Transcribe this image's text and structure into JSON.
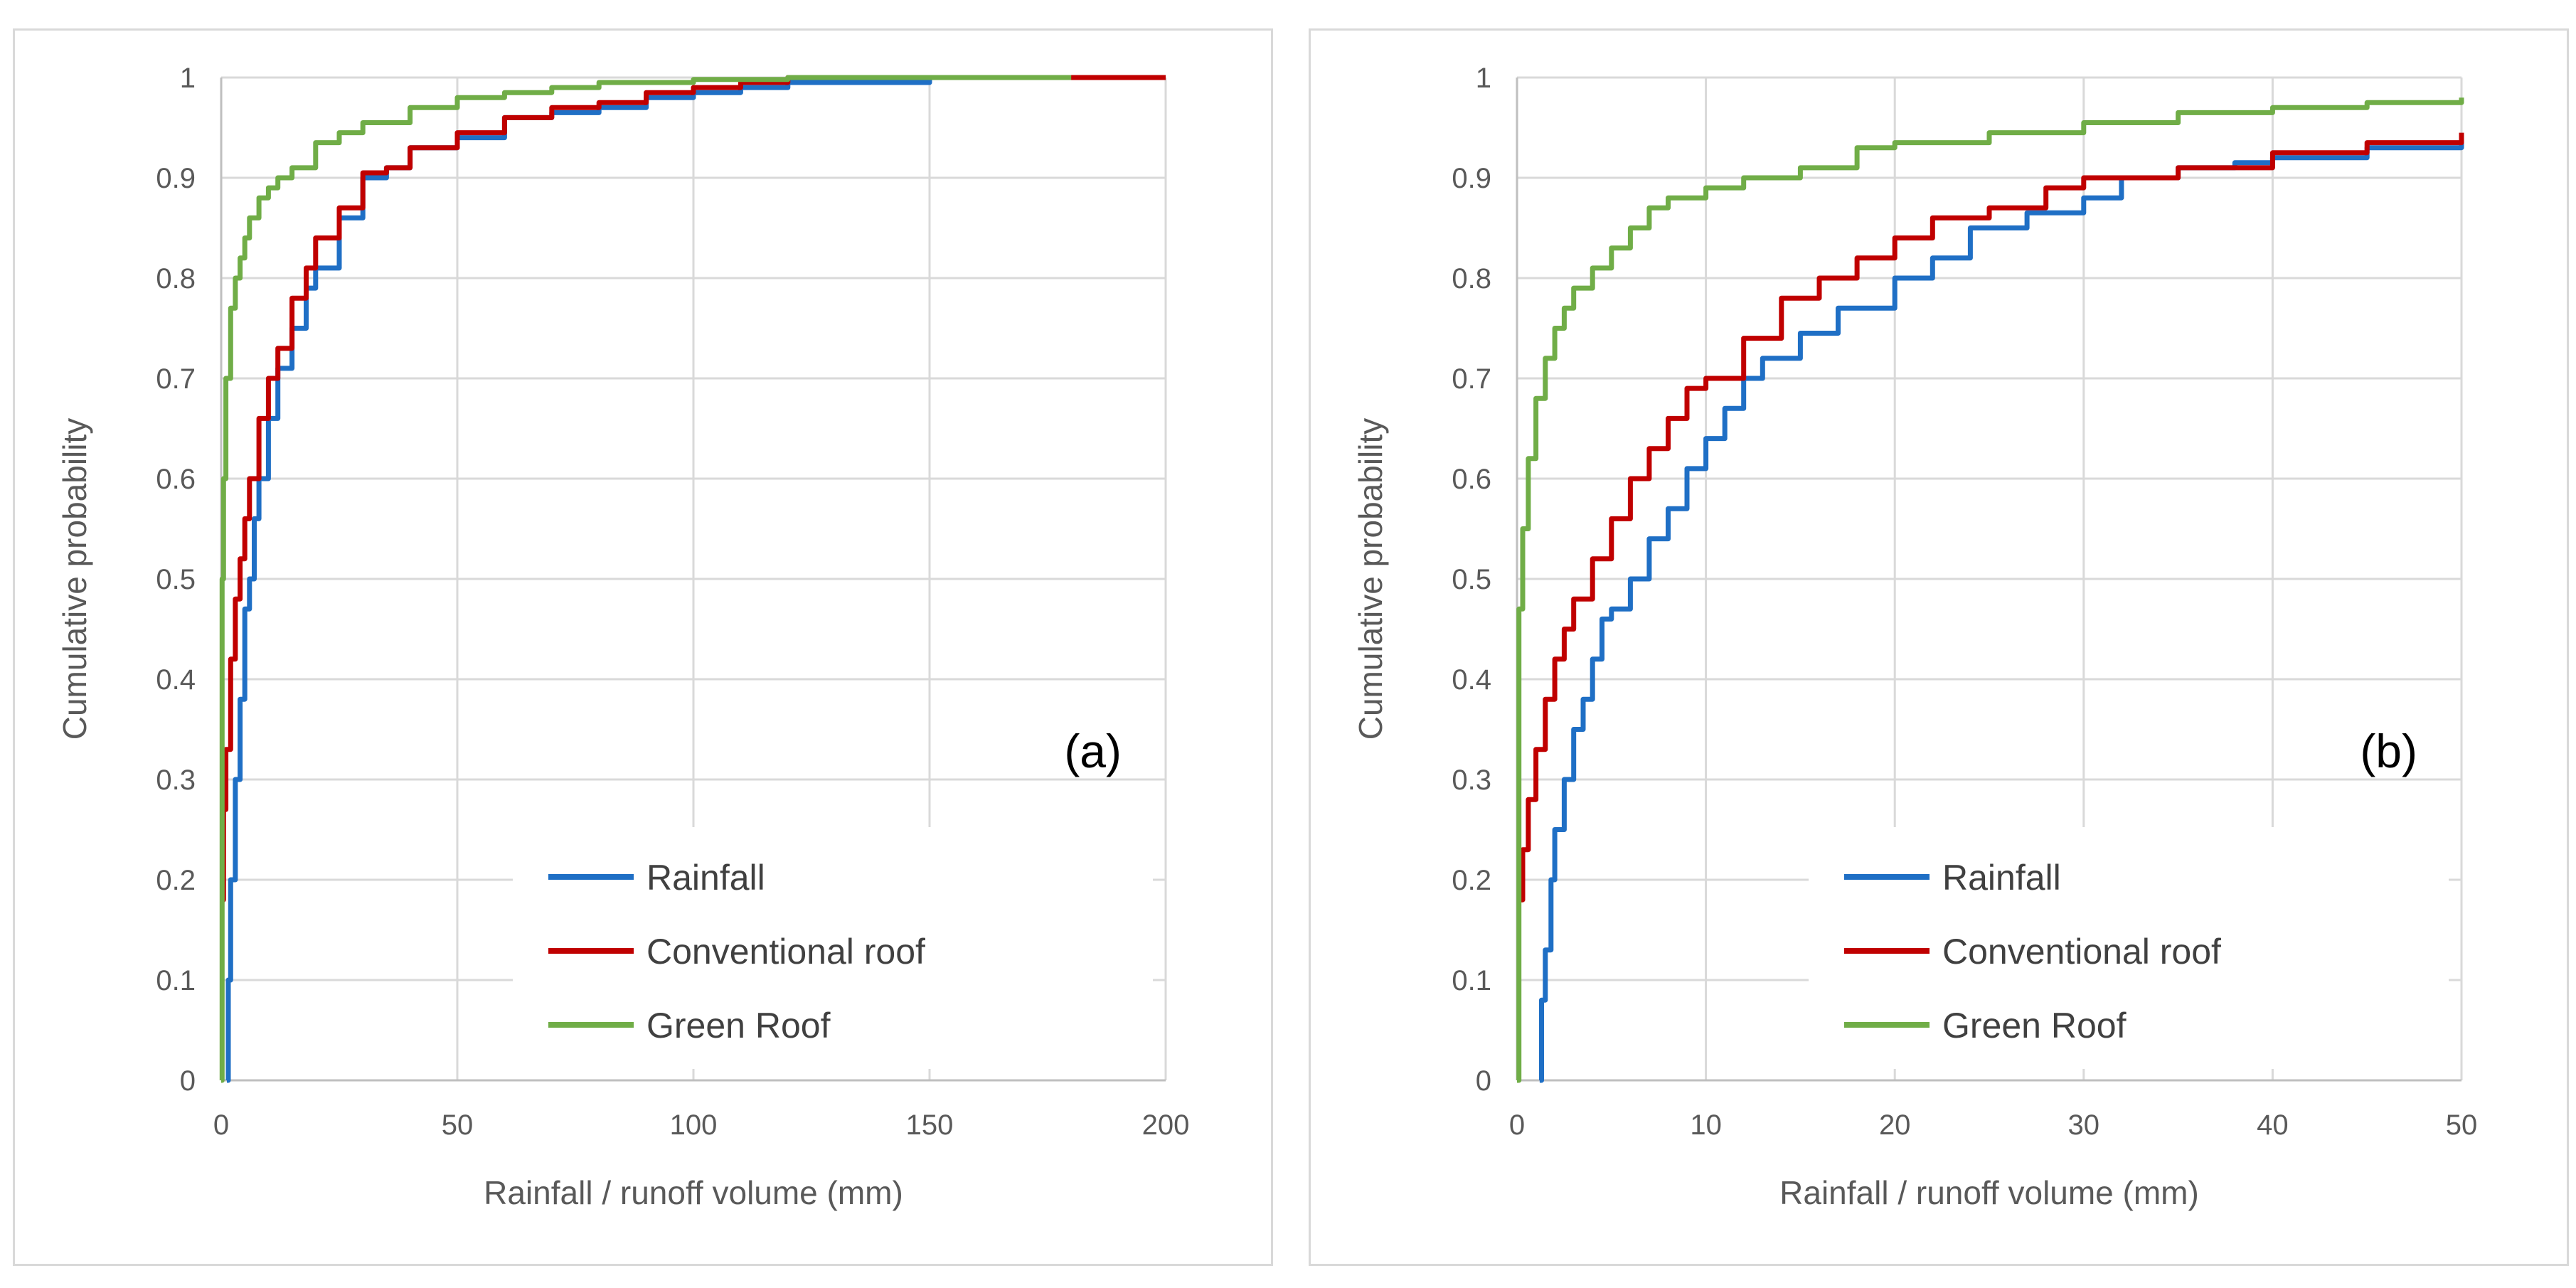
{
  "chart_data": [
    {
      "type": "line",
      "panel_label": "(a)",
      "xlabel": "Rainfall / runoff volume (mm)",
      "ylabel": "Cumulative probability",
      "xlim": [
        0,
        200
      ],
      "ylim": [
        0,
        1
      ],
      "xticks": [
        0,
        50,
        100,
        150,
        200
      ],
      "xtick_labels": [
        "0",
        "50",
        "100",
        "150",
        "200"
      ],
      "yticks": [
        0,
        0.1,
        0.2,
        0.3,
        0.4,
        0.5,
        0.6,
        0.7,
        0.8,
        0.9,
        1
      ],
      "ytick_labels": [
        "0",
        "0.1",
        "0.2",
        "0.3",
        "0.4",
        "0.5",
        "0.6",
        "0.7",
        "0.8",
        "0.9",
        "1"
      ],
      "grid": true,
      "legend_position": "bottom-right",
      "series": [
        {
          "name": "Rainfall",
          "color": "#1f6fc5",
          "x": [
            1.2,
            1.5,
            2,
            3,
            4,
            5,
            6,
            7,
            8,
            10,
            12,
            15,
            18,
            20,
            25,
            30,
            35,
            40,
            50,
            60,
            70,
            80,
            90,
            100,
            110,
            120,
            150,
            200
          ],
          "y": [
            0,
            0.1,
            0.2,
            0.3,
            0.38,
            0.47,
            0.5,
            0.56,
            0.6,
            0.66,
            0.71,
            0.75,
            0.79,
            0.81,
            0.86,
            0.9,
            0.91,
            0.93,
            0.94,
            0.96,
            0.965,
            0.97,
            0.98,
            0.985,
            0.99,
            0.995,
            1,
            1
          ]
        },
        {
          "name": "Conventional roof",
          "color": "#c00000",
          "x": [
            0.1,
            0.5,
            1,
            2,
            3,
            4,
            5,
            6,
            8,
            10,
            12,
            15,
            18,
            20,
            25,
            30,
            35,
            40,
            50,
            60,
            70,
            80,
            90,
            100,
            110,
            120,
            150,
            200
          ],
          "y": [
            0.18,
            0.27,
            0.33,
            0.42,
            0.48,
            0.52,
            0.56,
            0.6,
            0.66,
            0.7,
            0.73,
            0.78,
            0.81,
            0.84,
            0.87,
            0.905,
            0.91,
            0.93,
            0.945,
            0.96,
            0.97,
            0.975,
            0.985,
            0.99,
            0.995,
            1,
            1,
            1
          ]
        },
        {
          "name": "Green Roof",
          "color": "#70ad47",
          "x": [
            0,
            0.2,
            0.5,
            1,
            2,
            3,
            4,
            5,
            6,
            8,
            10,
            12,
            15,
            20,
            25,
            30,
            40,
            50,
            60,
            70,
            80,
            100,
            120,
            150,
            180
          ],
          "y": [
            0,
            0.5,
            0.6,
            0.7,
            0.77,
            0.8,
            0.82,
            0.84,
            0.86,
            0.88,
            0.89,
            0.9,
            0.91,
            0.935,
            0.945,
            0.955,
            0.97,
            0.98,
            0.985,
            0.99,
            0.995,
            0.998,
            1,
            1,
            1
          ]
        }
      ]
    },
    {
      "type": "line",
      "panel_label": "(b)",
      "xlabel": "Rainfall / runoff volume (mm)",
      "ylabel": "Cumulative probability",
      "xlim": [
        0,
        50
      ],
      "ylim": [
        0,
        1
      ],
      "xticks": [
        0,
        10,
        20,
        30,
        40,
        50
      ],
      "xtick_labels": [
        "0",
        "10",
        "20",
        "30",
        "40",
        "50"
      ],
      "yticks": [
        0,
        0.1,
        0.2,
        0.3,
        0.4,
        0.5,
        0.6,
        0.7,
        0.8,
        0.9,
        1
      ],
      "ytick_labels": [
        "0",
        "0.1",
        "0.2",
        "0.3",
        "0.4",
        "0.5",
        "0.6",
        "0.7",
        "0.8",
        "0.9",
        "1"
      ],
      "grid": true,
      "legend_position": "bottom-right",
      "series": [
        {
          "name": "Rainfall",
          "color": "#1f6fc5",
          "x": [
            1.2,
            1.3,
            1.5,
            1.8,
            2,
            2.5,
            3,
            3.5,
            4,
            4.5,
            5,
            6,
            7,
            8,
            9,
            10,
            11,
            12,
            13,
            15,
            17,
            20,
            22,
            24,
            27,
            30,
            32,
            35,
            38,
            40,
            45,
            50
          ],
          "y": [
            0,
            0.08,
            0.13,
            0.2,
            0.25,
            0.3,
            0.35,
            0.38,
            0.42,
            0.46,
            0.47,
            0.5,
            0.54,
            0.57,
            0.61,
            0.64,
            0.67,
            0.7,
            0.72,
            0.745,
            0.77,
            0.8,
            0.82,
            0.85,
            0.865,
            0.88,
            0.9,
            0.91,
            0.915,
            0.92,
            0.93,
            0.94
          ]
        },
        {
          "name": "Conventional roof",
          "color": "#c00000",
          "x": [
            0.1,
            0.3,
            0.6,
            1,
            1.5,
            2,
            2.5,
            3,
            4,
            5,
            6,
            7,
            8,
            9,
            10,
            12,
            14,
            16,
            18,
            20,
            22,
            25,
            28,
            30,
            35,
            40,
            45,
            50
          ],
          "y": [
            0.18,
            0.23,
            0.28,
            0.33,
            0.38,
            0.42,
            0.45,
            0.48,
            0.52,
            0.56,
            0.6,
            0.63,
            0.66,
            0.69,
            0.7,
            0.74,
            0.78,
            0.8,
            0.82,
            0.84,
            0.86,
            0.87,
            0.89,
            0.9,
            0.91,
            0.925,
            0.935,
            0.945
          ]
        },
        {
          "name": "Green Roof",
          "color": "#70ad47",
          "x": [
            0,
            0.1,
            0.3,
            0.6,
            1,
            1.5,
            2,
            2.5,
            3,
            4,
            5,
            6,
            7,
            8,
            10,
            12,
            15,
            18,
            20,
            25,
            30,
            35,
            40,
            45,
            50
          ],
          "y": [
            0,
            0.47,
            0.55,
            0.62,
            0.68,
            0.72,
            0.75,
            0.77,
            0.79,
            0.81,
            0.83,
            0.85,
            0.87,
            0.88,
            0.89,
            0.9,
            0.91,
            0.93,
            0.935,
            0.945,
            0.955,
            0.965,
            0.97,
            0.975,
            0.98
          ]
        }
      ]
    }
  ]
}
